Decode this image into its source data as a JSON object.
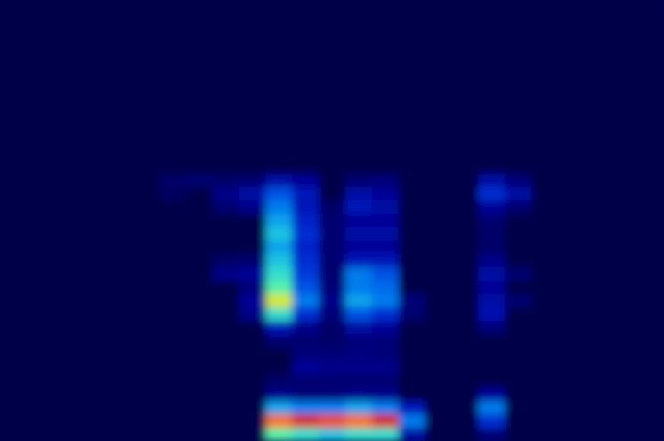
{
  "chart_data": {
    "type": "heatmap",
    "tick_labels": false,
    "zlim": [
      0,
      1
    ],
    "z": [
      [
        0,
        0,
        0,
        0,
        0,
        0,
        0,
        0,
        0,
        0,
        0,
        0,
        0,
        0,
        0,
        0,
        0,
        0,
        0,
        0,
        0,
        0,
        0,
        0,
        0
      ],
      [
        0,
        0,
        0,
        0,
        0,
        0,
        0,
        0,
        0,
        0,
        0,
        0,
        0,
        0,
        0,
        0,
        0,
        0,
        0,
        0,
        0,
        0,
        0,
        0,
        0
      ],
      [
        0,
        0,
        0,
        0,
        0,
        0,
        0,
        0,
        0,
        0,
        0,
        0,
        0,
        0,
        0,
        0,
        0,
        0,
        0,
        0,
        0,
        0,
        0,
        0,
        0
      ],
      [
        0,
        0,
        0,
        0,
        0,
        0,
        0,
        0,
        0,
        0,
        0,
        0,
        0,
        0,
        0,
        0,
        0,
        0,
        0,
        0,
        0,
        0,
        0,
        0,
        0
      ],
      [
        0,
        0,
        0,
        0,
        0,
        0,
        0,
        0,
        0,
        0,
        0,
        0,
        0,
        0,
        0,
        0,
        0,
        0,
        0,
        0,
        0,
        0,
        0,
        0,
        0
      ],
      [
        0,
        0,
        0,
        0,
        0,
        0,
        0,
        0,
        0,
        0,
        0,
        0,
        0,
        0,
        0,
        0,
        0,
        0,
        0,
        0,
        0,
        0,
        0,
        0,
        0
      ],
      [
        0,
        0,
        0,
        0,
        0,
        0,
        0,
        0,
        0,
        0,
        0,
        0,
        0,
        0,
        0,
        0,
        0,
        0,
        0,
        0,
        0,
        0,
        0,
        0,
        0
      ],
      [
        0,
        0,
        0,
        0,
        0,
        0,
        0,
        0,
        0,
        0,
        0,
        0,
        0,
        0,
        0,
        0,
        0,
        0,
        0,
        0,
        0,
        0,
        0,
        0,
        0
      ],
      [
        0,
        0,
        0,
        0,
        0,
        0,
        0,
        0,
        0,
        0,
        0,
        0,
        0,
        0,
        0,
        0,
        0,
        0,
        0,
        0,
        0,
        0,
        0,
        0,
        0
      ],
      [
        0,
        0,
        0,
        0,
        0,
        0,
        0,
        0,
        0,
        0,
        0,
        0,
        0,
        0,
        0,
        0,
        0,
        0,
        0,
        0,
        0,
        0,
        0,
        0,
        0
      ],
      [
        0,
        0,
        0,
        0,
        0,
        0,
        0,
        0,
        0,
        0,
        0,
        0,
        0,
        0,
        0,
        0,
        0,
        0,
        0,
        0,
        0,
        0,
        0,
        0,
        0
      ],
      [
        0,
        0,
        0,
        0,
        0,
        0,
        0,
        0,
        0,
        0,
        0,
        0,
        0,
        0,
        0,
        0,
        0,
        0,
        0,
        0,
        0,
        0,
        0,
        0,
        0
      ],
      [
        0,
        0,
        0,
        0,
        0,
        0,
        0,
        0,
        0,
        0,
        0,
        0,
        0,
        0,
        0,
        0,
        0,
        0,
        0,
        0,
        0,
        0,
        0,
        0,
        0
      ],
      [
        0,
        0,
        0,
        0,
        0,
        0,
        0.04,
        0.05,
        0.04,
        0.05,
        0.12,
        0.1,
        0,
        0.05,
        0.06,
        0,
        0,
        0,
        0.12,
        0.06,
        0,
        0,
        0,
        0,
        0
      ],
      [
        0,
        0,
        0,
        0,
        0,
        0,
        0.03,
        0,
        0.08,
        0.12,
        0.25,
        0.15,
        0,
        0.12,
        0.1,
        0,
        0,
        0,
        0.2,
        0.12,
        0,
        0,
        0,
        0,
        0
      ],
      [
        0,
        0,
        0,
        0,
        0,
        0,
        0,
        0,
        0.05,
        0.08,
        0.3,
        0.15,
        0.04,
        0.15,
        0.12,
        0,
        0,
        0,
        0.1,
        0.05,
        0,
        0,
        0,
        0,
        0
      ],
      [
        0,
        0,
        0,
        0,
        0,
        0,
        0,
        0,
        0,
        0,
        0.35,
        0.18,
        0.05,
        0.1,
        0.1,
        0,
        0,
        0,
        0.05,
        0,
        0,
        0,
        0,
        0,
        0
      ],
      [
        0,
        0,
        0,
        0,
        0,
        0,
        0,
        0,
        0,
        0,
        0.4,
        0.2,
        0.05,
        0.12,
        0.12,
        0,
        0,
        0,
        0.04,
        0,
        0,
        0,
        0,
        0,
        0
      ],
      [
        0,
        0,
        0,
        0,
        0,
        0,
        0,
        0,
        0,
        0,
        0.35,
        0.18,
        0.05,
        0.1,
        0.1,
        0,
        0,
        0,
        0.04,
        0,
        0,
        0,
        0,
        0,
        0
      ],
      [
        0,
        0,
        0,
        0,
        0,
        0,
        0,
        0,
        0.04,
        0.05,
        0.4,
        0.2,
        0.05,
        0.15,
        0.15,
        0,
        0,
        0,
        0.08,
        0,
        0,
        0,
        0,
        0,
        0
      ],
      [
        0,
        0,
        0,
        0,
        0,
        0,
        0,
        0,
        0.08,
        0.1,
        0.45,
        0.22,
        0.05,
        0.3,
        0.25,
        0,
        0,
        0,
        0.12,
        0.05,
        0,
        0,
        0,
        0,
        0
      ],
      [
        0,
        0,
        0,
        0,
        0,
        0,
        0,
        0,
        0,
        0.06,
        0.5,
        0.25,
        0.06,
        0.3,
        0.28,
        0,
        0,
        0,
        0.1,
        0,
        0,
        0,
        0,
        0,
        0
      ],
      [
        0,
        0,
        0,
        0,
        0,
        0,
        0,
        0,
        0,
        0.1,
        0.65,
        0.3,
        0.08,
        0.35,
        0.3,
        0.06,
        0,
        0,
        0.12,
        0.05,
        0,
        0,
        0,
        0,
        0
      ],
      [
        0,
        0,
        0,
        0,
        0,
        0,
        0,
        0,
        0,
        0.08,
        0.45,
        0.2,
        0.06,
        0.25,
        0.2,
        0.05,
        0,
        0,
        0.14,
        0,
        0,
        0,
        0,
        0,
        0
      ],
      [
        0,
        0,
        0,
        0,
        0,
        0,
        0,
        0,
        0,
        0,
        0.15,
        0.08,
        0.04,
        0.12,
        0.1,
        0,
        0,
        0,
        0.06,
        0,
        0,
        0,
        0,
        0,
        0
      ],
      [
        0,
        0,
        0,
        0,
        0,
        0,
        0,
        0,
        0,
        0,
        0.05,
        0.05,
        0.04,
        0.06,
        0.06,
        0,
        0,
        0,
        0,
        0,
        0,
        0,
        0,
        0,
        0
      ],
      [
        0,
        0,
        0,
        0,
        0,
        0,
        0,
        0,
        0,
        0,
        0,
        0.06,
        0.06,
        0.07,
        0.06,
        0,
        0,
        0,
        0,
        0,
        0,
        0,
        0,
        0,
        0
      ],
      [
        0,
        0,
        0,
        0,
        0,
        0,
        0,
        0,
        0,
        0,
        0,
        0.1,
        0.08,
        0.08,
        0.08,
        0,
        0,
        0,
        0,
        0,
        0,
        0,
        0,
        0,
        0
      ],
      [
        0,
        0,
        0,
        0,
        0,
        0,
        0,
        0,
        0,
        0,
        0.04,
        0.05,
        0.05,
        0.05,
        0.05,
        0,
        0,
        0,
        0,
        0,
        0,
        0,
        0,
        0,
        0
      ],
      [
        0,
        0,
        0,
        0,
        0,
        0,
        0,
        0,
        0,
        0,
        0.08,
        0.06,
        0.06,
        0.08,
        0.08,
        0,
        0,
        0,
        0.1,
        0,
        0,
        0,
        0,
        0,
        0
      ],
      [
        0,
        0,
        0,
        0,
        0,
        0,
        0,
        0,
        0,
        0,
        0.35,
        0.3,
        0.3,
        0.35,
        0.3,
        0.15,
        0,
        0,
        0.3,
        0,
        0,
        0,
        0,
        0,
        0
      ],
      [
        0,
        0,
        0,
        0,
        0,
        0,
        0,
        0,
        0,
        0,
        0.8,
        0.9,
        0.85,
        0.8,
        0.9,
        0.3,
        0,
        0,
        0.2,
        0,
        0,
        0,
        0,
        0,
        0
      ],
      [
        0,
        0,
        0,
        0,
        0,
        0,
        0,
        0,
        0,
        0,
        0.5,
        0.45,
        0.4,
        0.45,
        0.45,
        0.12,
        0,
        0,
        0.06,
        0,
        0,
        0,
        0,
        0,
        0
      ]
    ]
  }
}
